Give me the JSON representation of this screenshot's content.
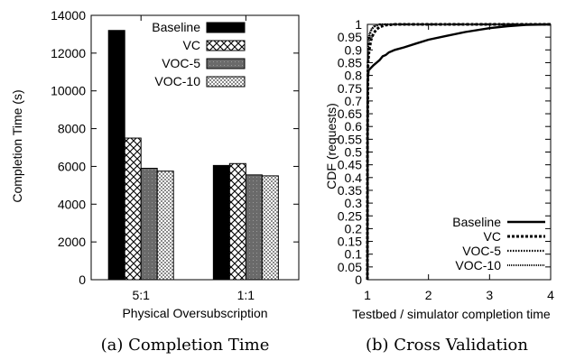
{
  "captions": {
    "a": "(a) Completion Time",
    "b": "(b) Cross Validation"
  },
  "chart_data": [
    {
      "type": "bar",
      "categories": [
        "5:1",
        "1:1"
      ],
      "series": [
        {
          "name": "Baseline",
          "values": [
            13200,
            6050
          ]
        },
        {
          "name": "VC",
          "values": [
            7500,
            6150
          ]
        },
        {
          "name": "VOC-5",
          "values": [
            5900,
            5550
          ]
        },
        {
          "name": "VOC-10",
          "values": [
            5750,
            5500
          ]
        }
      ],
      "xlabel": "Physical Oversubscription",
      "ylabel": "Completion Time (s)",
      "ylim": [
        0,
        14000
      ],
      "yticks": [
        0,
        2000,
        4000,
        6000,
        8000,
        10000,
        12000,
        14000
      ],
      "legend": "top-right",
      "grid": false
    },
    {
      "type": "line",
      "series": [
        {
          "name": "Baseline",
          "points": [
            [
              1.0,
              0.0
            ],
            [
              1.003,
              0.5
            ],
            [
              1.005,
              0.78
            ],
            [
              1.02,
              0.82
            ],
            [
              1.06,
              0.83
            ],
            [
              1.1,
              0.84
            ],
            [
              1.15,
              0.85
            ],
            [
              1.2,
              0.86
            ],
            [
              1.25,
              0.875
            ],
            [
              1.3,
              0.88
            ],
            [
              1.35,
              0.89
            ],
            [
              1.45,
              0.9
            ],
            [
              1.6,
              0.91
            ],
            [
              1.8,
              0.925
            ],
            [
              2.0,
              0.94
            ],
            [
              2.3,
              0.955
            ],
            [
              2.6,
              0.97
            ],
            [
              3.0,
              0.985
            ],
            [
              3.3,
              0.993
            ],
            [
              3.6,
              0.998
            ],
            [
              4.0,
              1.0
            ]
          ]
        },
        {
          "name": "VC",
          "points": [
            [
              1.0,
              0.0
            ],
            [
              1.002,
              0.55
            ],
            [
              1.01,
              0.85
            ],
            [
              1.03,
              0.9
            ],
            [
              1.06,
              0.94
            ],
            [
              1.1,
              0.965
            ],
            [
              1.15,
              0.98
            ],
            [
              1.2,
              0.99
            ],
            [
              1.3,
              0.997
            ],
            [
              1.45,
              1.0
            ],
            [
              4.0,
              1.0
            ]
          ]
        },
        {
          "name": "VOC-5",
          "points": [
            [
              1.0,
              0.0
            ],
            [
              1.002,
              0.7
            ],
            [
              1.01,
              0.9
            ],
            [
              1.03,
              0.95
            ],
            [
              1.06,
              0.975
            ],
            [
              1.1,
              0.99
            ],
            [
              1.2,
              1.0
            ],
            [
              4.0,
              1.0
            ]
          ]
        },
        {
          "name": "VOC-10",
          "points": [
            [
              1.0,
              0.0
            ],
            [
              1.002,
              0.72
            ],
            [
              1.01,
              0.92
            ],
            [
              1.03,
              0.96
            ],
            [
              1.06,
              0.98
            ],
            [
              1.1,
              0.992
            ],
            [
              1.2,
              1.0
            ],
            [
              4.0,
              1.0
            ]
          ]
        }
      ],
      "xlabel": "Testbed / simulator completion time",
      "ylabel": "CDF (requests)",
      "xlim": [
        1,
        4
      ],
      "ylim": [
        0,
        1
      ],
      "xticks": [
        1,
        2,
        3,
        4
      ],
      "yticks": [
        "0",
        "0.05",
        "0.1",
        "0.15",
        "0.2",
        "0.25",
        "0.3",
        "0.35",
        "0.4",
        "0.45",
        "0.5",
        "0.55",
        "0.6",
        "0.65",
        "0.7",
        "0.75",
        "0.8",
        "0.85",
        "0.9",
        "0.95",
        "1"
      ],
      "legend": "bottom-right",
      "grid": false
    }
  ]
}
